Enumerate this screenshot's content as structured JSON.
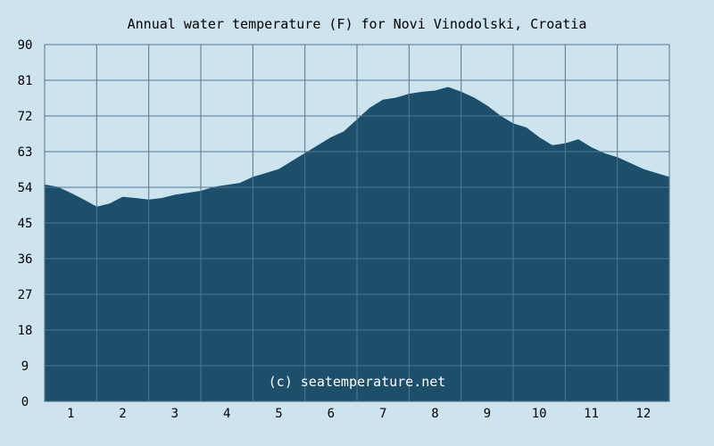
{
  "chart_data": {
    "type": "area",
    "title": "Annual water temperature (F) for Novi Vinodolski, Croatia",
    "watermark": "(c) seatemperature.net",
    "xlabel": "",
    "ylabel": "",
    "ylim": [
      0,
      90
    ],
    "xlim": [
      0.5,
      12.5
    ],
    "yticks": [
      0,
      9,
      18,
      27,
      36,
      45,
      54,
      63,
      72,
      81,
      90
    ],
    "xticks": [
      1,
      2,
      3,
      4,
      5,
      6,
      7,
      8,
      9,
      10,
      11,
      12
    ],
    "grid": true,
    "x": [
      0.5,
      0.75,
      1.0,
      1.25,
      1.5,
      1.75,
      2.0,
      2.25,
      2.5,
      2.75,
      3.0,
      3.25,
      3.5,
      3.75,
      4.0,
      4.25,
      4.5,
      4.75,
      5.0,
      5.25,
      5.5,
      5.75,
      6.0,
      6.25,
      6.5,
      6.75,
      7.0,
      7.25,
      7.5,
      7.75,
      8.0,
      8.25,
      8.5,
      8.75,
      9.0,
      9.25,
      9.5,
      9.75,
      10.0,
      10.25,
      10.5,
      10.75,
      11.0,
      11.25,
      11.5,
      11.75,
      12.0,
      12.25,
      12.5
    ],
    "values": [
      54.6,
      54.0,
      52.5,
      50.8,
      49.0,
      49.8,
      51.5,
      51.2,
      50.8,
      51.2,
      52.0,
      52.5,
      53.0,
      54.0,
      54.5,
      55.0,
      56.5,
      57.5,
      58.5,
      60.5,
      62.5,
      64.5,
      66.5,
      68.0,
      71.0,
      74.0,
      76.0,
      76.5,
      77.5,
      78.0,
      78.3,
      79.2,
      78.0,
      76.5,
      74.5,
      72.0,
      70.0,
      69.0,
      66.5,
      64.5,
      65.0,
      66.0,
      64.0,
      62.5,
      61.5,
      60.0,
      58.5,
      57.5,
      56.5
    ],
    "colors": {
      "background": "#cde3ee",
      "fill": "#1d4f6a",
      "grid": "#4f7891",
      "text": "#000000",
      "watermark": "#ffffff"
    }
  }
}
